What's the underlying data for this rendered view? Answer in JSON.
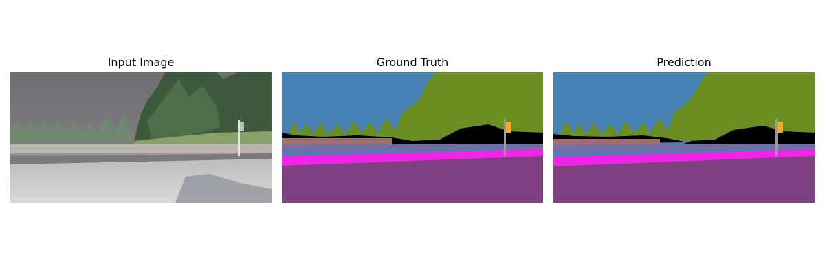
{
  "panels": [
    {
      "title": "Input Image"
    },
    {
      "title": "Ground Truth"
    },
    {
      "title": "Prediction"
    }
  ],
  "colors": {
    "sky": "#4682b4",
    "vegetation": "#6b8e23",
    "road": "#803f80",
    "sidewalk": "#f423e8",
    "fence": "#6e6fa6",
    "wall": "#a07070",
    "pole": "#999999",
    "traffic_sign": "#faaa1e",
    "unlabeled": "#000000"
  }
}
